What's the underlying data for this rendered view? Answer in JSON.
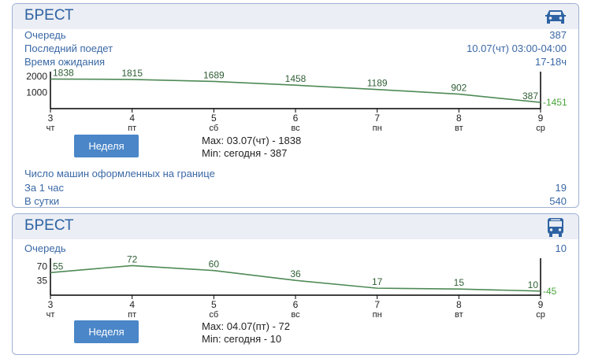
{
  "colors": {
    "accent": "#2e63a3",
    "label": "#3a68a6",
    "line": "#4e8a55",
    "button": "#4a86c8"
  },
  "cars": {
    "title": "БРЕСТ",
    "icon": "car-icon",
    "queue_label": "Очередь",
    "queue_value": "387",
    "last_label": "Последний поедет",
    "last_value": "10.07(чт) 03:00-04:00",
    "wait_label": "Время ожидания",
    "wait_value": "17-18ч",
    "button_label": "Неделя",
    "max_text": "Max: 03.07(чт) - 1838",
    "min_text": "Min:  сегодня - 387",
    "processed_label": "Число машин оформленных на границе",
    "hour_label": "За 1 час",
    "hour_value": "19",
    "day_label": "В сутки",
    "day_value": "540",
    "chart_data": {
      "type": "line",
      "categories": [
        "3",
        "4",
        "5",
        "6",
        "7",
        "8",
        "9"
      ],
      "weekdays": [
        "чт",
        "пт",
        "сб",
        "вс",
        "пн",
        "вт",
        "ср"
      ],
      "values": [
        1838,
        1815,
        1689,
        1458,
        1189,
        902,
        387
      ],
      "labels": [
        "1838",
        "1815",
        "1689",
        "1458",
        "1189",
        "902",
        "387"
      ],
      "yticks": [
        "2000",
        "1000"
      ],
      "ytick_values": [
        2000,
        1000
      ],
      "ylim": [
        0,
        2300
      ],
      "delta": "-1451"
    }
  },
  "bus": {
    "title": "БРЕСТ",
    "icon": "bus-icon",
    "queue_label": "Очередь",
    "queue_value": "10",
    "button_label": "Неделя",
    "max_text": "Max: 04.07(пт) - 72",
    "min_text": "Min:  сегодня - 10",
    "chart_data": {
      "type": "line",
      "categories": [
        "3",
        "4",
        "5",
        "6",
        "7",
        "8",
        "9"
      ],
      "weekdays": [
        "чт",
        "пт",
        "сб",
        "вс",
        "пн",
        "вт",
        "ср"
      ],
      "values": [
        55,
        72,
        60,
        36,
        17,
        15,
        10
      ],
      "labels": [
        "55",
        "72",
        "60",
        "36",
        "17",
        "15",
        "10"
      ],
      "yticks": [
        "70",
        "35"
      ],
      "ytick_values": [
        70,
        35
      ],
      "ylim": [
        0,
        90
      ],
      "delta": "-45"
    }
  }
}
